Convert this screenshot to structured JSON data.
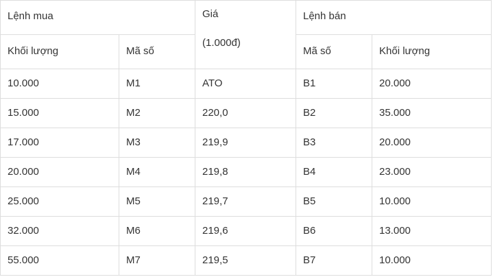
{
  "header": {
    "buy_group": "Lệnh mua",
    "price_line1": "Giá",
    "price_line2": "(1.000đ)",
    "sell_group": "Lệnh bán",
    "buy_volume": "Khối lượng",
    "buy_code": "Mã số",
    "sell_code": "Mã số",
    "sell_volume": "Khối lượng"
  },
  "rows": [
    {
      "buy_volume": "10.000",
      "buy_code": "M1",
      "price": "ATO",
      "sell_code": "B1",
      "sell_volume": "20.000"
    },
    {
      "buy_volume": "15.000",
      "buy_code": "M2",
      "price": "220,0",
      "sell_code": "B2",
      "sell_volume": "35.000"
    },
    {
      "buy_volume": "17.000",
      "buy_code": "M3",
      "price": "219,9",
      "sell_code": "B3",
      "sell_volume": "20.000"
    },
    {
      "buy_volume": "20.000",
      "buy_code": "M4",
      "price": "219,8",
      "sell_code": "B4",
      "sell_volume": "23.000"
    },
    {
      "buy_volume": "25.000",
      "buy_code": "M5",
      "price": "219,7",
      "sell_code": "B5",
      "sell_volume": "10.000"
    },
    {
      "buy_volume": "32.000",
      "buy_code": "M6",
      "price": "219,6",
      "sell_code": "B6",
      "sell_volume": "13.000"
    },
    {
      "buy_volume": "55.000",
      "buy_code": "M7",
      "price": "219,5",
      "sell_code": "B7",
      "sell_volume": "10.000"
    }
  ]
}
